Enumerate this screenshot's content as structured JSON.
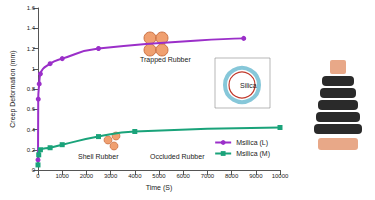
{
  "chart_data": {
    "type": "line",
    "x_label": "Time (S)",
    "y_label": "Creep Deformation (mm)",
    "xlim": [
      0,
      10000
    ],
    "xticks": [
      0,
      1000,
      2000,
      3000,
      4000,
      5000,
      6000,
      7000,
      8000,
      9000,
      10000
    ],
    "ylim": [
      0,
      1.6
    ],
    "yticks": [
      0,
      0.2,
      0.4,
      0.6,
      0.8,
      1,
      1.2,
      1.4,
      1.6
    ],
    "grid": false,
    "legend": "lower right",
    "series": [
      {
        "name": "Msilica (L)",
        "color": "#9b2fc9",
        "marker": "circle",
        "line_style": "solid",
        "x": [
          0,
          10,
          50,
          100,
          500,
          1000,
          2500,
          8500
        ],
        "values": [
          0.1,
          0.7,
          0.85,
          0.95,
          1.05,
          1.1,
          1.2,
          1.3
        ]
      },
      {
        "name": "Msilica (M)",
        "color": "#1aa37a",
        "marker": "square",
        "line_style": "solid",
        "x": [
          0,
          30,
          100,
          500,
          1000,
          2500,
          4000,
          10000
        ],
        "values": [
          0.05,
          0.15,
          0.2,
          0.22,
          0.25,
          0.33,
          0.38,
          0.42
        ]
      }
    ],
    "annotations": [
      "Trapped Rubber",
      "Silica",
      "Shell Rubber",
      "Occluded Rubber"
    ]
  }
}
